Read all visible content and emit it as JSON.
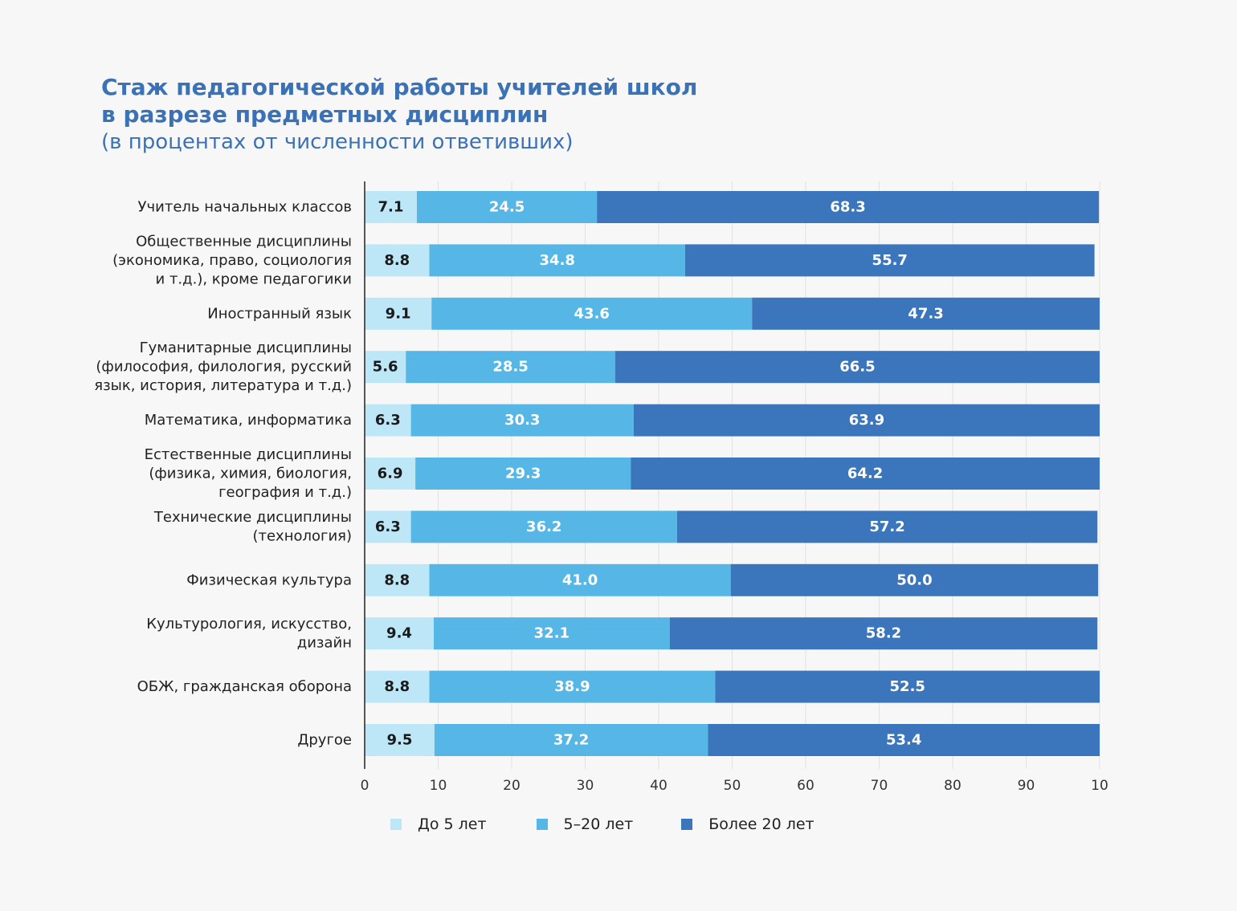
{
  "chart_data": {
    "type": "bar",
    "orientation": "horizontal",
    "stacked": true,
    "title": [
      "Стаж педагогической работы учителей школ",
      "в разрезе предметных дисциплин"
    ],
    "subtitle": "(в процентах от численности ответивших)",
    "categories": [
      [
        "Учитель начальных классов"
      ],
      [
        "Общественные дисциплины",
        "(экономика, право, социология",
        "и т.д.), кроме педагогики"
      ],
      [
        "Иностранный язык"
      ],
      [
        "Гуманитарные дисциплины",
        "(философия, филология, русский",
        "язык, история, литература и т.д.)"
      ],
      [
        "Математика, информатика"
      ],
      [
        "Естественные дисциплины",
        "(физика, химия, биология,",
        "география и т.д.)"
      ],
      [
        "Технические дисциплины",
        "(технология)"
      ],
      [
        "Физическая культура"
      ],
      [
        "Культурология, искусство,",
        "дизайн"
      ],
      [
        "ОБЖ, гражданская оборона"
      ],
      [
        "Другое"
      ]
    ],
    "series": [
      {
        "name": "До 5 лет",
        "color": "#bde6f7",
        "label_color": "#1a1a1a",
        "values": [
          7.1,
          8.8,
          9.1,
          5.6,
          6.3,
          6.9,
          6.3,
          8.8,
          9.4,
          8.8,
          9.5
        ]
      },
      {
        "name": "5–20 лет",
        "color": "#56b7e7",
        "label_color": "#ffffff",
        "values": [
          24.5,
          34.8,
          43.6,
          28.5,
          30.3,
          29.3,
          36.2,
          41.0,
          32.1,
          38.9,
          37.2
        ]
      },
      {
        "name": "Более 20 лет",
        "color": "#3b76bc",
        "label_color": "#ffffff",
        "values": [
          68.3,
          55.7,
          47.3,
          66.5,
          63.9,
          64.2,
          57.2,
          50.0,
          58.2,
          52.5,
          53.4
        ]
      }
    ],
    "xlim": [
      0,
      100
    ],
    "xticks": [
      "0",
      "10",
      "20",
      "30",
      "40",
      "50",
      "60",
      "70",
      "80",
      "90",
      "10"
    ],
    "grid": true,
    "legend_position": "bottom"
  }
}
